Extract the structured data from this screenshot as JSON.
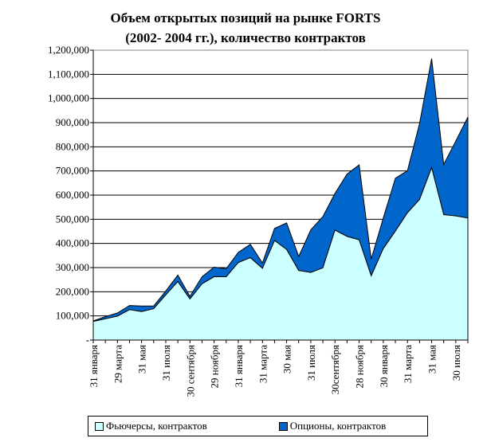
{
  "chart_data": {
    "type": "area",
    "stacked": true,
    "title": "Объем открытых позиций на рынке FORTS",
    "subtitle": "(2002- 2004 гг.), количество контрактов",
    "xlabel": "",
    "ylabel": "",
    "ylim": [
      0,
      1200000
    ],
    "yticks": [
      0,
      100000,
      200000,
      300000,
      400000,
      500000,
      600000,
      700000,
      800000,
      900000,
      1000000,
      1100000,
      1200000
    ],
    "ytick_labels": [
      "-",
      "100,000",
      "200,000",
      "300,000",
      "400,000",
      "500,000",
      "600,000",
      "700,000",
      "800,000",
      "900,000",
      "1,000,000",
      "1,100,000",
      "1,200,000"
    ],
    "x_tick_labels": [
      "31 января",
      "29 марта",
      "31 мая",
      "31 июля",
      "30 сентября",
      "29 ноября",
      "31 января",
      "31 марта",
      "30 мая",
      "31 июля",
      "30сентября",
      "28 ноября",
      "30 января",
      "31 марта",
      "31 мая",
      "30 июля"
    ],
    "grid": true,
    "legend_position": "bottom",
    "series": [
      {
        "name": "Фьючерсы, контрактов",
        "color": "#CCFFFF",
        "values": [
          77000,
          88000,
          99000,
          126000,
          118000,
          130000,
          187000,
          242000,
          170000,
          233000,
          262000,
          262000,
          321000,
          341000,
          297000,
          412000,
          375000,
          288000,
          280000,
          299000,
          455000,
          429000,
          415000,
          266000,
          379000,
          451000,
          527000,
          582000,
          714000,
          519000,
          514000,
          505000
        ]
      },
      {
        "name": "Опционы, контрактов",
        "color": "#0066CC",
        "values": [
          2000,
          9000,
          13000,
          17000,
          23000,
          11000,
          16000,
          27000,
          11000,
          29000,
          40000,
          33000,
          42000,
          55000,
          22000,
          50000,
          110000,
          58000,
          176000,
          212000,
          152000,
          258000,
          310000,
          69000,
          126000,
          219000,
          174000,
          314000,
          451000,
          208000,
          310000,
          418000
        ]
      }
    ]
  }
}
